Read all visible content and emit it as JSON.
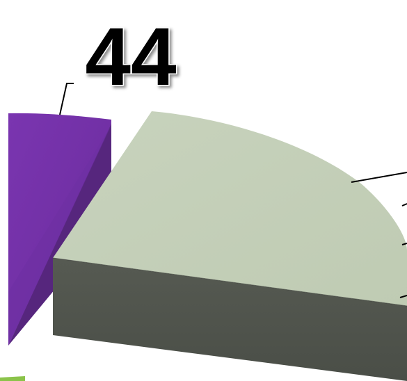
{
  "chart_data": {
    "type": "pie",
    "title": "",
    "slices": [
      {
        "name": "",
        "value": 44,
        "label": "44",
        "color": "#7030a0",
        "side_color": "#5a2782"
      },
      {
        "name": "",
        "value": null,
        "label": "",
        "color": "#c4d0b8",
        "side_color": "#4f534c"
      }
    ],
    "style": "3d-exploded-pie",
    "legend": "none"
  }
}
